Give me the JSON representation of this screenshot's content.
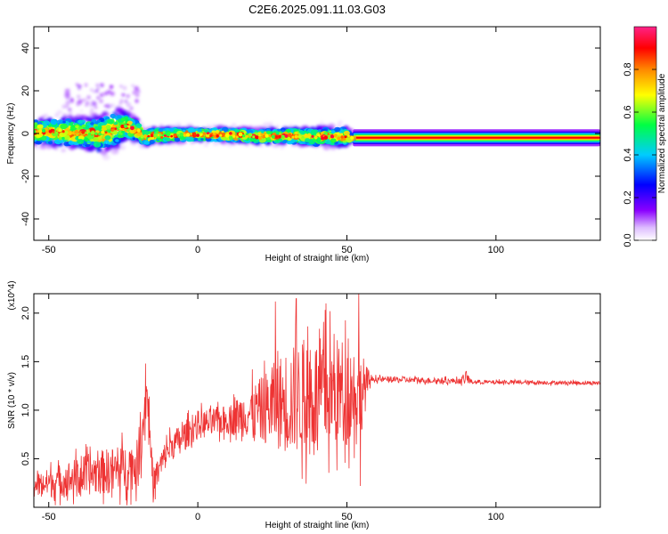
{
  "title": "C2E6.2025.091.11.03.G03",
  "colors": {
    "snr_line": "#ee3333",
    "axis": "#000000",
    "background": "#ffffff"
  },
  "chart_data": [
    {
      "type": "heatmap",
      "name": "spectrogram",
      "xlabel": "Height of straight line (km)",
      "ylabel": "Frequency (Hz)",
      "xlim": [
        -55,
        135
      ],
      "ylim": [
        -50,
        50
      ],
      "xticks": [
        -50,
        0,
        50,
        100
      ],
      "yticks": [
        -40,
        -20,
        0,
        20,
        40
      ],
      "grid": false,
      "colorbar": {
        "label": "Normalized spectral amplitude",
        "range": [
          0,
          1
        ],
        "ticks": [
          0.0,
          0.2,
          0.4,
          0.6,
          0.8
        ],
        "tick_labels": [
          "0.0",
          "0.2",
          "0.4",
          "0.6",
          "0.8"
        ],
        "placement": "right",
        "colormap": "rainbow (white-violet-blue-cyan-green-yellow-red-magenta)"
      },
      "ridge_center_hz": [
        {
          "x": -55,
          "f": 1.0
        },
        {
          "x": -40,
          "f": 0.5
        },
        {
          "x": -33,
          "f": -0.5
        },
        {
          "x": -28,
          "f": 2.0
        },
        {
          "x": -24,
          "f": 3.5
        },
        {
          "x": -20,
          "f": 1.0
        },
        {
          "x": -18,
          "f": -2.0
        },
        {
          "x": -15,
          "f": -1.0
        },
        {
          "x": -5,
          "f": -0.5
        },
        {
          "x": 10,
          "f": -0.5
        },
        {
          "x": 20,
          "f": -1.5
        },
        {
          "x": 30,
          "f": -1.0
        },
        {
          "x": 40,
          "f": -1.5
        },
        {
          "x": 50,
          "f": -1.5
        },
        {
          "x": 52,
          "f": -2.0
        },
        {
          "x": 135,
          "f": -2.0
        }
      ],
      "spread_hz": [
        {
          "x": -55,
          "s": 8
        },
        {
          "x": -40,
          "s": 10
        },
        {
          "x": -28,
          "s": 12
        },
        {
          "x": -18,
          "s": 5
        },
        {
          "x": 0,
          "s": 4
        },
        {
          "x": 30,
          "s": 5
        },
        {
          "x": 50,
          "s": 6
        },
        {
          "x": 52,
          "s": 1.5
        },
        {
          "x": 135,
          "s": 1.5
        }
      ]
    },
    {
      "type": "line",
      "name": "snr",
      "xlabel": "Height of straight line (km)",
      "ylabel": "SNR (10 * v/v)",
      "y_multiplier_label": "(x10^4)",
      "xlim": [
        -55,
        135
      ],
      "ylim": [
        0,
        2.2
      ],
      "xticks": [
        -50,
        0,
        50,
        100
      ],
      "yticks": [
        0.5,
        1.0,
        1.5,
        2.0
      ],
      "ytick_labels": [
        "0.5",
        "1.0",
        "1.5",
        "2.0"
      ],
      "grid": false,
      "series": [
        {
          "envelope": [
            {
              "x": -55,
              "mean": 0.22,
              "amp": 0.12
            },
            {
              "x": -45,
              "mean": 0.28,
              "amp": 0.18
            },
            {
              "x": -35,
              "mean": 0.35,
              "amp": 0.22
            },
            {
              "x": -25,
              "mean": 0.4,
              "amp": 0.25
            },
            {
              "x": -20,
              "mean": 0.45,
              "amp": 0.25
            },
            {
              "x": -17,
              "mean": 1.2,
              "amp": 0.25
            },
            {
              "x": -15,
              "mean": 0.25,
              "amp": 0.15
            },
            {
              "x": -10,
              "mean": 0.6,
              "amp": 0.15
            },
            {
              "x": 0,
              "mean": 0.85,
              "amp": 0.15
            },
            {
              "x": 10,
              "mean": 0.9,
              "amp": 0.15
            },
            {
              "x": 20,
              "mean": 1.0,
              "amp": 0.3
            },
            {
              "x": 30,
              "mean": 1.1,
              "amp": 0.55
            },
            {
              "x": 40,
              "mean": 1.15,
              "amp": 0.6
            },
            {
              "x": 50,
              "mean": 1.2,
              "amp": 0.55
            },
            {
              "x": 55,
              "mean": 1.2,
              "amp": 0.4
            },
            {
              "x": 58,
              "mean": 1.32,
              "amp": 0.03
            },
            {
              "x": 88,
              "mean": 1.3,
              "amp": 0.03
            },
            {
              "x": 90,
              "mean": 1.33,
              "amp": 0.06
            },
            {
              "x": 92,
              "mean": 1.29,
              "amp": 0.02
            },
            {
              "x": 135,
              "mean": 1.28,
              "amp": 0.02
            }
          ],
          "spikes": [
            {
              "x": -17.5,
              "y": 1.48
            },
            {
              "x": -15,
              "y": 0.05
            },
            {
              "x": 26,
              "y": 2.12
            },
            {
              "x": 33,
              "y": 2.15
            },
            {
              "x": 43,
              "y": 2.1
            },
            {
              "x": 54,
              "y": 2.2
            },
            {
              "x": 54.5,
              "y": 0.22
            },
            {
              "x": 90,
              "y": 1.4
            }
          ]
        }
      ]
    }
  ]
}
